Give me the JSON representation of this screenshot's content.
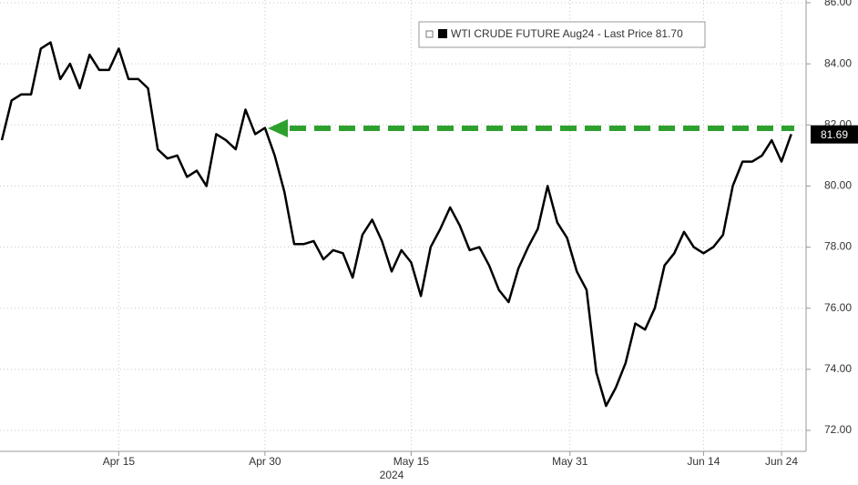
{
  "chart_data": {
    "type": "line",
    "x_group_label": "2024",
    "x": [
      0,
      1,
      2,
      3,
      4,
      5,
      6,
      7,
      8,
      9,
      10,
      11,
      12,
      13,
      14,
      15,
      16,
      17,
      18,
      19,
      20,
      21,
      22,
      23,
      24,
      25,
      26,
      27,
      28,
      29,
      30,
      31,
      32,
      33,
      34,
      35,
      36,
      37,
      38,
      39,
      40,
      41,
      42,
      43,
      44,
      45,
      46,
      47,
      48,
      49,
      50,
      51,
      52,
      53,
      54,
      55,
      56,
      57,
      58,
      59,
      60,
      61,
      62,
      63,
      64,
      65,
      66,
      67,
      68,
      69,
      70,
      71,
      72,
      73,
      74,
      75,
      76,
      77,
      78,
      79,
      80,
      81
    ],
    "series": [
      {
        "name": "WTI CRUDE FUTURE Aug24 - Last Price 81.70",
        "color": "#000000",
        "values": [
          81.5,
          82.8,
          83.0,
          83.0,
          84.5,
          84.7,
          83.5,
          84.0,
          83.2,
          84.3,
          83.8,
          83.8,
          84.5,
          83.5,
          83.5,
          83.2,
          81.2,
          80.9,
          81.0,
          80.3,
          80.5,
          80.0,
          81.7,
          81.5,
          81.2,
          82.5,
          81.7,
          81.9,
          81.0,
          79.8,
          78.1,
          78.1,
          78.2,
          77.6,
          77.9,
          77.8,
          77.0,
          78.4,
          78.9,
          78.2,
          77.2,
          77.9,
          77.5,
          76.4,
          78.0,
          78.6,
          79.3,
          78.7,
          77.9,
          78.0,
          77.4,
          76.6,
          76.2,
          77.3,
          78.0,
          78.6,
          80.0,
          78.8,
          78.3,
          77.2,
          76.6,
          73.9,
          72.8,
          73.4,
          74.2,
          75.5,
          75.3,
          76.0,
          77.4,
          77.8,
          78.5,
          78.0,
          77.8,
          78.0,
          78.4,
          80.0,
          80.8,
          80.8,
          81.0,
          81.5,
          80.8,
          81.7
        ]
      }
    ],
    "last_value_label": 81.69,
    "xlim": [
      -0.2,
      82.5
    ],
    "xticks": [
      {
        "value": 12,
        "label": "Apr 15"
      },
      {
        "value": 27,
        "label": "Apr 30"
      },
      {
        "value": 42,
        "label": "May 15"
      },
      {
        "value": 58.3,
        "label": "May 31"
      },
      {
        "value": 72,
        "label": "Jun 14"
      },
      {
        "value": 80,
        "label": "Jun 24"
      }
    ],
    "ylim": [
      72,
      86
    ],
    "yticks": [
      {
        "value": 72,
        "label": "72.00"
      },
      {
        "value": 74,
        "label": "74.00"
      },
      {
        "value": 76,
        "label": "76.00"
      },
      {
        "value": 78,
        "label": "78.00"
      },
      {
        "value": 80,
        "label": "80.00"
      },
      {
        "value": 82,
        "label": "82.00"
      },
      {
        "value": 84,
        "label": "84.00"
      },
      {
        "value": 86,
        "label": "86.00"
      }
    ],
    "grid": true
  }
}
